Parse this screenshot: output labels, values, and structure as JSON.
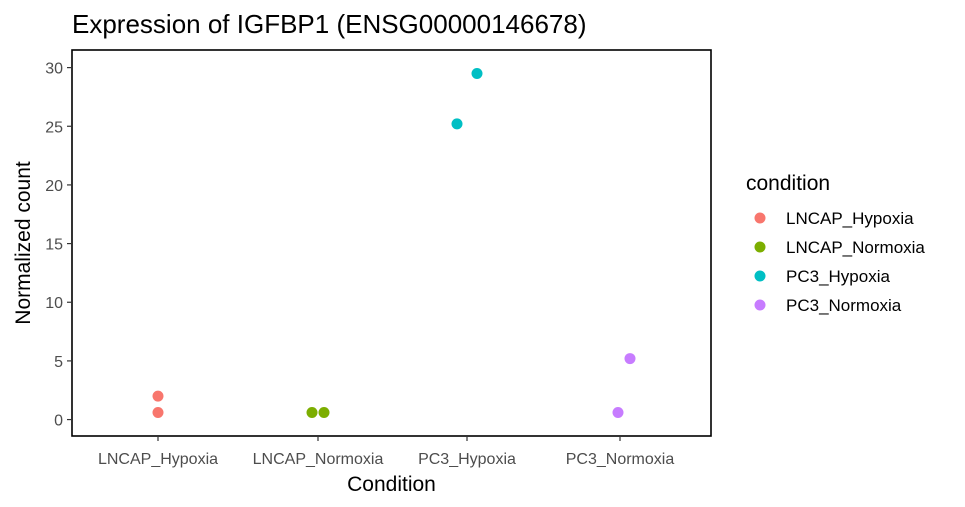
{
  "chart_data": {
    "type": "scatter",
    "title": "Expression of IGFBP1 (ENSG00000146678)",
    "xlabel": "Condition",
    "ylabel": "Normalized count",
    "categories": [
      "LNCAP_Hypoxia",
      "LNCAP_Normoxia",
      "PC3_Hypoxia",
      "PC3_Normoxia"
    ],
    "ylim": [
      -1.4,
      31.5
    ],
    "yticks": [
      0,
      5,
      10,
      15,
      20,
      25,
      30
    ],
    "grid": false,
    "legend": {
      "title": "condition",
      "position": "right"
    },
    "series": [
      {
        "name": "LNCAP_Hypoxia",
        "color": "#F8766D",
        "points": [
          {
            "x": "LNCAP_Hypoxia",
            "y": 2.0
          },
          {
            "x": "LNCAP_Hypoxia",
            "y": 0.6
          }
        ]
      },
      {
        "name": "LNCAP_Normoxia",
        "color": "#7CAE00",
        "points": [
          {
            "x": "LNCAP_Normoxia",
            "y": 0.6
          },
          {
            "x": "LNCAP_Normoxia",
            "y": 0.6
          }
        ]
      },
      {
        "name": "PC3_Hypoxia",
        "color": "#00BFC4",
        "points": [
          {
            "x": "PC3_Hypoxia",
            "y": 25.2
          },
          {
            "x": "PC3_Hypoxia",
            "y": 29.5
          }
        ]
      },
      {
        "name": "PC3_Normoxia",
        "color": "#C77CFF",
        "points": [
          {
            "x": "PC3_Normoxia",
            "y": 0.6
          },
          {
            "x": "PC3_Normoxia",
            "y": 5.2
          }
        ]
      }
    ]
  }
}
